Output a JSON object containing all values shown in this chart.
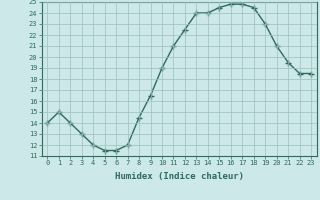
{
  "x": [
    0,
    1,
    2,
    3,
    4,
    5,
    6,
    7,
    8,
    9,
    10,
    11,
    12,
    13,
    14,
    15,
    16,
    17,
    18,
    19,
    20,
    21,
    22,
    23
  ],
  "y": [
    14,
    15,
    14,
    13,
    12,
    11.5,
    11.5,
    12,
    14.5,
    16.5,
    19,
    21,
    22.5,
    24,
    24,
    24.5,
    24.8,
    24.8,
    24.5,
    23,
    21,
    19.5,
    18.5,
    18.5
  ],
  "xlabel": "Humidex (Indice chaleur)",
  "ylim": [
    11,
    25
  ],
  "xlim": [
    -0.5,
    23.5
  ],
  "yticks": [
    11,
    12,
    13,
    14,
    15,
    16,
    17,
    18,
    19,
    20,
    21,
    22,
    23,
    24,
    25
  ],
  "xticks": [
    0,
    1,
    2,
    3,
    4,
    5,
    6,
    7,
    8,
    9,
    10,
    11,
    12,
    13,
    14,
    15,
    16,
    17,
    18,
    19,
    20,
    21,
    22,
    23
  ],
  "line_color": "#2d6b5e",
  "bg_color": "#cce8e8",
  "grid_color": "#9dbfbf",
  "marker": "+",
  "marker_size": 4,
  "line_width": 1.0,
  "tick_fontsize": 5.0,
  "xlabel_fontsize": 6.5
}
